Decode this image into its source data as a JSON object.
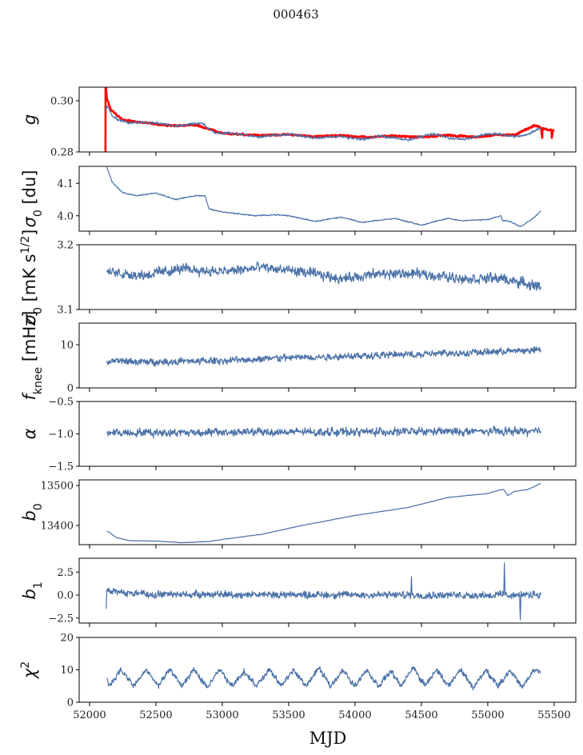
{
  "chart_data": [
    {
      "type": "line",
      "figure_title": "000463",
      "xlabel": "MJD",
      "xlim": [
        51922,
        55663
      ],
      "xticks": [
        52000,
        52500,
        53000,
        53500,
        54000,
        54500,
        55000,
        55500
      ],
      "xtick_labels": [
        "52000",
        "52500",
        "53000",
        "53500",
        "54000",
        "54500",
        "55000",
        "55500"
      ],
      "grid": false,
      "panels": [
        {
          "ylabel": [
            {
              "t": "g",
              "i": true
            }
          ],
          "ylim": [
            0.28,
            0.3053
          ],
          "yticks": [
            0.28,
            0.3
          ],
          "ytick_labels": [
            "0.28",
            "0.30"
          ],
          "series": [
            {
              "name": "g-model",
              "color": "#ff0000",
              "width": 2.6,
              "noise": 0.0004,
              "x": [
                52118,
                52120,
                52121,
                52123,
                52130,
                52160,
                52250,
                52400,
                52600,
                52800,
                52900,
                53000,
                53300,
                53500,
                53700,
                53900,
                54100,
                54300,
                54500,
                54700,
                54900,
                55100,
                55200,
                55350,
                55400,
                55410,
                55412,
                55420,
                55480,
                55482,
                55490,
                55500
              ],
              "y": [
                0.28,
                0.28,
                0.3053,
                0.3053,
                0.301,
                0.2965,
                0.2925,
                0.2915,
                0.2903,
                0.2905,
                0.289,
                0.2872,
                0.2865,
                0.2868,
                0.286,
                0.2865,
                0.2857,
                0.2863,
                0.2858,
                0.2866,
                0.2858,
                0.2868,
                0.2866,
                0.2903,
                0.2895,
                0.2855,
                0.2893,
                0.289,
                0.2885,
                0.2855,
                0.2885,
                0.2885
              ]
            },
            {
              "name": "g",
              "color": "#4c72a8",
              "width": 1.2,
              "noise": 0.0006,
              "x": [
                52125,
                52135,
                52170,
                52220,
                52300,
                52400,
                52500,
                52600,
                52650,
                52750,
                52850,
                52900,
                52950,
                53100,
                53250,
                53400,
                53500,
                53600,
                53700,
                53800,
                53900,
                54050,
                54200,
                54300,
                54400,
                54500,
                54600,
                54700,
                54800,
                54900,
                55000,
                55100,
                55150,
                55200,
                55300,
                55400
              ],
              "y": [
                0.2965,
                0.298,
                0.294,
                0.2925,
                0.2913,
                0.2915,
                0.2912,
                0.2905,
                0.29,
                0.2908,
                0.2911,
                0.289,
                0.2875,
                0.2872,
                0.286,
                0.2865,
                0.287,
                0.2862,
                0.2855,
                0.2858,
                0.286,
                0.2849,
                0.2862,
                0.2855,
                0.2847,
                0.2862,
                0.287,
                0.2855,
                0.2849,
                0.2858,
                0.287,
                0.287,
                0.2865,
                0.286,
                0.2868,
                0.2896
              ]
            }
          ]
        },
        {
          "ylabel": [
            {
              "t": "σ",
              "i": true
            },
            {
              "t": "0",
              "s": "sub"
            },
            {
              "t": " [du]"
            }
          ],
          "ylim": [
            3.9525,
            4.1525
          ],
          "yticks": [
            4.0,
            4.1
          ],
          "ytick_labels": [
            "4.0",
            "4.1"
          ],
          "series": [
            {
              "name": "sigma0-du",
              "color": "#4c72a8",
              "width": 1.2,
              "noise": 0.002,
              "x": [
                52130,
                52170,
                52250,
                52350,
                52500,
                52650,
                52800,
                52870,
                52900,
                53000,
                53250,
                53400,
                53500,
                53700,
                53900,
                54050,
                54300,
                54500,
                54700,
                54800,
                55000,
                55100,
                55110,
                55150,
                55250,
                55350,
                55400
              ],
              "y": [
                4.15,
                4.104,
                4.071,
                4.062,
                4.07,
                4.05,
                4.062,
                4.062,
                4.021,
                4.012,
                4.0,
                4.003,
                4.0,
                3.983,
                3.996,
                3.979,
                3.992,
                3.971,
                3.992,
                3.985,
                3.988,
                4.0,
                3.985,
                3.985,
                3.967,
                3.995,
                4.015
              ]
            }
          ]
        },
        {
          "ylabel": [
            {
              "t": "σ",
              "i": true
            },
            {
              "t": "0",
              "s": "sub"
            },
            {
              "t": " [mK s"
            },
            {
              "t": "1/2",
              "s": "sup"
            },
            {
              "t": "]"
            }
          ],
          "ylim": [
            3.1,
            3.2
          ],
          "yticks": [
            3.1,
            3.2
          ],
          "ytick_labels": [
            "3.1",
            "3.2"
          ],
          "series": [
            {
              "name": "sigma0-mK",
              "color": "#4c72a8",
              "width": 1.2,
              "noise": 0.009,
              "x": [
                52130,
                52400,
                52700,
                53000,
                53300,
                53600,
                53900,
                54200,
                54500,
                54800,
                55100,
                55400
              ],
              "y": [
                3.158,
                3.153,
                3.163,
                3.158,
                3.165,
                3.158,
                3.148,
                3.155,
                3.155,
                3.148,
                3.148,
                3.135
              ]
            }
          ]
        },
        {
          "ylabel": [
            {
              "t": "f",
              "i": true
            },
            {
              "t": "knee",
              "s": "sub"
            },
            {
              "t": " [mHz]"
            }
          ],
          "ylim": [
            0,
            15
          ],
          "yticks": [
            0,
            10
          ],
          "ytick_labels": [
            "0",
            "10"
          ],
          "series": [
            {
              "name": "fknee",
              "color": "#4c72a8",
              "width": 1.2,
              "noise": 0.9,
              "x": [
                52130,
                52500,
                53000,
                53500,
                54000,
                54500,
                55000,
                55400
              ],
              "y": [
                6.2,
                6.0,
                6.3,
                7.0,
                7.4,
                7.8,
                8.3,
                8.8
              ]
            }
          ]
        },
        {
          "ylabel": [
            {
              "t": "α",
              "i": true
            }
          ],
          "ylim": [
            -1.5,
            -0.5
          ],
          "yticks": [
            -1.5,
            -1.0,
            -0.5
          ],
          "ytick_labels": [
            "−1.5",
            "−1.0",
            "−0.5"
          ],
          "series": [
            {
              "name": "alpha",
              "color": "#4c72a8",
              "width": 1.2,
              "noise": 0.07,
              "x": [
                52130,
                55400
              ],
              "y": [
                -0.98,
                -0.96
              ]
            }
          ]
        },
        {
          "ylabel": [
            {
              "t": "b",
              "i": true
            },
            {
              "t": "0",
              "s": "sub"
            }
          ],
          "ylim": [
            13352,
            13514
          ],
          "yticks": [
            13400,
            13500
          ],
          "ytick_labels": [
            "13400",
            "13500"
          ],
          "series": [
            {
              "name": "b0",
              "color": "#4c72a8",
              "width": 1.2,
              "noise": 0.6,
              "x": [
                52130,
                52150,
                52200,
                52300,
                52500,
                52700,
                52900,
                53000,
                53300,
                53600,
                54000,
                54400,
                54700,
                55000,
                55080,
                55120,
                55150,
                55200,
                55300,
                55400
              ],
              "y": [
                13385,
                13383,
                13370,
                13362,
                13361,
                13357,
                13360,
                13365,
                13378,
                13400,
                13425,
                13445,
                13470,
                13480,
                13488,
                13490,
                13475,
                13485,
                13490,
                13505
              ]
            }
          ]
        },
        {
          "ylabel": [
            {
              "t": "b",
              "i": true
            },
            {
              "t": "1",
              "s": "sub"
            }
          ],
          "ylim": [
            -3.04,
            4.0
          ],
          "yticks": [
            -2.5,
            0,
            2.5
          ],
          "ytick_labels": [
            "−2.5",
            "0.0",
            "2.5"
          ],
          "series": [
            {
              "name": "b1",
              "color": "#4c72a8",
              "width": 1.2,
              "noise": 0.45,
              "x": [
                52125,
                52130,
                52140,
                52400,
                54420,
                54425,
                54430,
                55100,
                55120,
                55125,
                55130,
                55240,
                55245,
                55250,
                55400
              ],
              "y": [
                -1.5,
                0.3,
                0.4,
                0.1,
                0,
                2,
                0,
                0,
                0,
                3.5,
                0,
                0,
                -2.7,
                0,
                0.1
              ]
            }
          ]
        },
        {
          "ylabel": [
            {
              "t": "χ",
              "i": true
            },
            {
              "t": "2",
              "s": "sup"
            }
          ],
          "ylim": [
            0,
            20
          ],
          "yticks": [
            0,
            10,
            20
          ],
          "ytick_labels": [
            "0",
            "10",
            "20"
          ],
          "series": [
            {
              "name": "chi2",
              "color": "#4c72a8",
              "width": 1.2,
              "noise": 1.0,
              "x": [
                52130,
                52146,
                52236,
                52332,
                52428,
                52518,
                52608,
                52698,
                52788,
                52885,
                52981,
                53071,
                53161,
                53257,
                53353,
                53444,
                53534,
                53630,
                53726,
                53816,
                53906,
                53997,
                54087,
                54177,
                54267,
                54351,
                54435,
                54525,
                54615,
                54705,
                54796,
                54892,
                54988,
                55078,
                55168,
                55258,
                55348,
                55400
              ],
              "y": [
                7.5,
                5,
                10,
                5,
                10,
                5,
                10,
                5,
                10,
                4.5,
                10,
                5,
                9.5,
                5,
                10,
                5,
                10,
                5,
                10.5,
                5,
                10,
                5,
                10,
                5,
                9.5,
                5,
                11,
                5,
                10,
                5,
                10,
                4.5,
                10,
                5,
                10,
                4.5,
                10,
                9
              ]
            }
          ]
        }
      ]
    }
  ]
}
